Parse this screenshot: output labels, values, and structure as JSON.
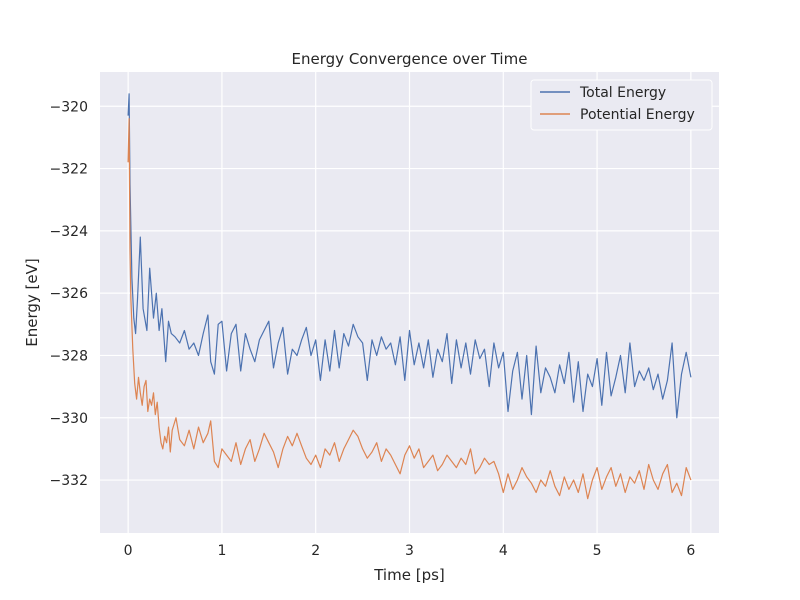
{
  "chart_data": {
    "type": "line",
    "title": "Energy Convergence over Time",
    "xlabel": "Time [ps]",
    "ylabel": "Energy [eV]",
    "xlim": [
      -0.3,
      6.3
    ],
    "ylim": [
      -333.7,
      -318.9
    ],
    "xticks": [
      0,
      1,
      2,
      3,
      4,
      5,
      6
    ],
    "xtick_labels": [
      "0",
      "1",
      "2",
      "3",
      "4",
      "5",
      "6"
    ],
    "yticks": [
      -320,
      -322,
      -324,
      -326,
      -328,
      -330,
      -332
    ],
    "ytick_labels": [
      "−320",
      "−322",
      "−324",
      "−326",
      "−328",
      "−330",
      "−332"
    ],
    "grid": true,
    "legend_position": "top-right",
    "colors": {
      "background": "#eaeaf2",
      "grid": "#ffffff",
      "series1": "#4c72b0",
      "series2": "#dd8452"
    },
    "series": [
      {
        "name": "Total Energy",
        "color": "#4c72b0",
        "x": [
          0,
          0.01,
          0.02,
          0.04,
          0.06,
          0.08,
          0.1,
          0.13,
          0.16,
          0.2,
          0.23,
          0.27,
          0.3,
          0.33,
          0.36,
          0.4,
          0.43,
          0.46,
          0.5,
          0.55,
          0.6,
          0.65,
          0.7,
          0.75,
          0.8,
          0.85,
          0.88,
          0.92,
          0.96,
          1.0,
          1.05,
          1.1,
          1.15,
          1.2,
          1.25,
          1.3,
          1.35,
          1.4,
          1.45,
          1.5,
          1.55,
          1.6,
          1.65,
          1.7,
          1.75,
          1.8,
          1.85,
          1.9,
          1.95,
          2.0,
          2.05,
          2.1,
          2.15,
          2.2,
          2.25,
          2.3,
          2.35,
          2.4,
          2.45,
          2.5,
          2.55,
          2.6,
          2.65,
          2.7,
          2.75,
          2.8,
          2.85,
          2.9,
          2.95,
          3.0,
          3.05,
          3.1,
          3.15,
          3.2,
          3.25,
          3.3,
          3.35,
          3.4,
          3.45,
          3.5,
          3.55,
          3.6,
          3.65,
          3.7,
          3.75,
          3.8,
          3.85,
          3.9,
          3.95,
          4.0,
          4.05,
          4.1,
          4.15,
          4.2,
          4.25,
          4.3,
          4.35,
          4.4,
          4.45,
          4.5,
          4.55,
          4.6,
          4.65,
          4.7,
          4.75,
          4.8,
          4.85,
          4.9,
          4.95,
          5.0,
          5.05,
          5.1,
          5.15,
          5.2,
          5.25,
          5.3,
          5.35,
          5.4,
          5.45,
          5.5,
          5.55,
          5.6,
          5.65,
          5.7,
          5.75,
          5.8,
          5.85,
          5.9,
          5.95,
          6.0
        ],
        "y": [
          -320.3,
          -319.6,
          -322.5,
          -325.5,
          -326.8,
          -327.3,
          -326.2,
          -324.2,
          -326.5,
          -327.2,
          -325.2,
          -326.8,
          -326.0,
          -327.2,
          -326.5,
          -328.2,
          -326.9,
          -327.3,
          -327.4,
          -327.6,
          -327.2,
          -327.8,
          -327.6,
          -328.0,
          -327.3,
          -326.7,
          -328.2,
          -328.6,
          -327.0,
          -326.9,
          -328.5,
          -327.3,
          -327.0,
          -328.5,
          -327.3,
          -327.8,
          -328.2,
          -327.5,
          -327.2,
          -326.9,
          -328.4,
          -327.6,
          -327.1,
          -328.6,
          -327.8,
          -328.0,
          -327.5,
          -327.1,
          -328.0,
          -327.5,
          -328.8,
          -327.5,
          -328.5,
          -327.2,
          -328.4,
          -327.3,
          -327.7,
          -327.0,
          -327.4,
          -327.6,
          -328.8,
          -327.5,
          -328.0,
          -327.4,
          -327.8,
          -327.6,
          -328.3,
          -327.4,
          -328.8,
          -327.2,
          -328.3,
          -327.6,
          -328.4,
          -327.5,
          -328.7,
          -327.8,
          -328.2,
          -327.3,
          -328.9,
          -327.5,
          -328.4,
          -327.6,
          -328.6,
          -327.5,
          -328.1,
          -327.8,
          -329.0,
          -327.6,
          -328.4,
          -327.9,
          -329.8,
          -328.5,
          -327.9,
          -329.4,
          -328.0,
          -329.9,
          -327.7,
          -329.2,
          -328.4,
          -328.7,
          -329.2,
          -328.3,
          -328.9,
          -327.9,
          -329.5,
          -328.2,
          -329.8,
          -328.6,
          -329.0,
          -328.1,
          -329.6,
          -327.9,
          -329.3,
          -328.7,
          -328.0,
          -329.2,
          -327.6,
          -329.0,
          -328.5,
          -328.8,
          -328.4,
          -329.1,
          -328.6,
          -329.4,
          -328.8,
          -327.6,
          -330.0,
          -328.6,
          -327.9,
          -328.7
        ]
      },
      {
        "name": "Potential Energy",
        "color": "#dd8452",
        "x": [
          0,
          0.01,
          0.02,
          0.03,
          0.05,
          0.07,
          0.09,
          0.11,
          0.13,
          0.15,
          0.17,
          0.19,
          0.21,
          0.23,
          0.25,
          0.27,
          0.29,
          0.31,
          0.33,
          0.35,
          0.37,
          0.39,
          0.41,
          0.43,
          0.45,
          0.47,
          0.49,
          0.51,
          0.55,
          0.6,
          0.65,
          0.7,
          0.75,
          0.8,
          0.85,
          0.88,
          0.92,
          0.96,
          1.0,
          1.05,
          1.1,
          1.15,
          1.2,
          1.25,
          1.3,
          1.35,
          1.4,
          1.45,
          1.5,
          1.55,
          1.6,
          1.65,
          1.7,
          1.75,
          1.8,
          1.85,
          1.9,
          1.95,
          2.0,
          2.05,
          2.1,
          2.15,
          2.2,
          2.25,
          2.3,
          2.35,
          2.4,
          2.45,
          2.5,
          2.55,
          2.6,
          2.65,
          2.7,
          2.75,
          2.8,
          2.85,
          2.9,
          2.95,
          3.0,
          3.05,
          3.1,
          3.15,
          3.2,
          3.25,
          3.3,
          3.35,
          3.4,
          3.45,
          3.5,
          3.55,
          3.6,
          3.65,
          3.7,
          3.75,
          3.8,
          3.85,
          3.9,
          3.95,
          4.0,
          4.05,
          4.1,
          4.15,
          4.2,
          4.25,
          4.3,
          4.35,
          4.4,
          4.45,
          4.5,
          4.55,
          4.6,
          4.65,
          4.7,
          4.75,
          4.8,
          4.85,
          4.9,
          4.95,
          5.0,
          5.05,
          5.1,
          5.15,
          5.2,
          5.25,
          5.3,
          5.35,
          5.4,
          5.45,
          5.5,
          5.55,
          5.6,
          5.65,
          5.7,
          5.75,
          5.8,
          5.85,
          5.9,
          5.95,
          6.0
        ],
        "y": [
          -321.8,
          -320.4,
          -324.6,
          -326.2,
          -327.8,
          -328.9,
          -329.4,
          -328.7,
          -329.2,
          -329.6,
          -329.0,
          -328.8,
          -329.8,
          -329.4,
          -329.6,
          -329.2,
          -329.9,
          -329.5,
          -330.3,
          -330.8,
          -331.0,
          -330.6,
          -330.8,
          -330.3,
          -331.1,
          -330.4,
          -330.2,
          -330.0,
          -330.7,
          -330.9,
          -330.4,
          -331.0,
          -330.3,
          -330.8,
          -330.5,
          -330.1,
          -331.4,
          -331.6,
          -331.0,
          -331.2,
          -331.4,
          -330.8,
          -331.5,
          -331.0,
          -330.7,
          -331.4,
          -331.0,
          -330.5,
          -330.8,
          -331.1,
          -331.6,
          -331.0,
          -330.6,
          -330.9,
          -330.5,
          -330.9,
          -331.3,
          -331.5,
          -331.2,
          -331.6,
          -331.0,
          -331.2,
          -330.8,
          -331.4,
          -331.0,
          -330.7,
          -330.4,
          -330.6,
          -331.0,
          -331.3,
          -331.1,
          -330.8,
          -331.4,
          -331.0,
          -331.2,
          -331.5,
          -331.8,
          -331.2,
          -330.9,
          -331.3,
          -331.0,
          -331.6,
          -331.4,
          -331.2,
          -331.7,
          -331.5,
          -331.2,
          -331.4,
          -331.6,
          -331.3,
          -331.5,
          -331.0,
          -331.8,
          -331.6,
          -331.3,
          -331.5,
          -331.4,
          -331.8,
          -332.4,
          -331.8,
          -332.3,
          -332.0,
          -331.6,
          -331.9,
          -332.1,
          -332.4,
          -332.0,
          -332.2,
          -331.7,
          -332.2,
          -332.5,
          -331.9,
          -332.3,
          -332.0,
          -332.4,
          -331.8,
          -332.6,
          -332.0,
          -331.6,
          -332.3,
          -331.9,
          -331.6,
          -332.2,
          -331.8,
          -332.4,
          -331.9,
          -332.1,
          -331.7,
          -332.3,
          -331.5,
          -332.0,
          -332.3,
          -331.8,
          -331.5,
          -332.4,
          -332.1,
          -332.5,
          -331.6,
          -332.0
        ]
      }
    ]
  }
}
